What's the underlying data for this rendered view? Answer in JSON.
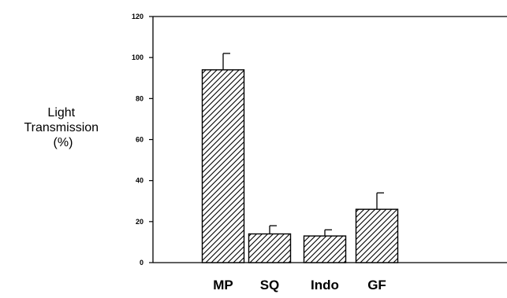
{
  "chart_data": {
    "type": "bar",
    "title": "",
    "xlabel": "",
    "ylabel_lines": [
      "Light",
      "Transmission",
      "(%)"
    ],
    "categories": [
      "MP",
      "SQ",
      "Indo",
      "GF"
    ],
    "values": [
      94,
      14,
      13,
      26
    ],
    "error_upper": [
      8,
      4,
      3,
      8
    ],
    "ylim": [
      0,
      120
    ],
    "yticks": [
      0,
      20,
      40,
      60,
      80,
      100,
      120
    ],
    "bar_pattern": "diagonal-hatch",
    "grid": false,
    "legend": "none",
    "colors": {
      "bar_fill": "#ffffff",
      "bar_stroke": "#000000",
      "axis": "#000000"
    }
  }
}
